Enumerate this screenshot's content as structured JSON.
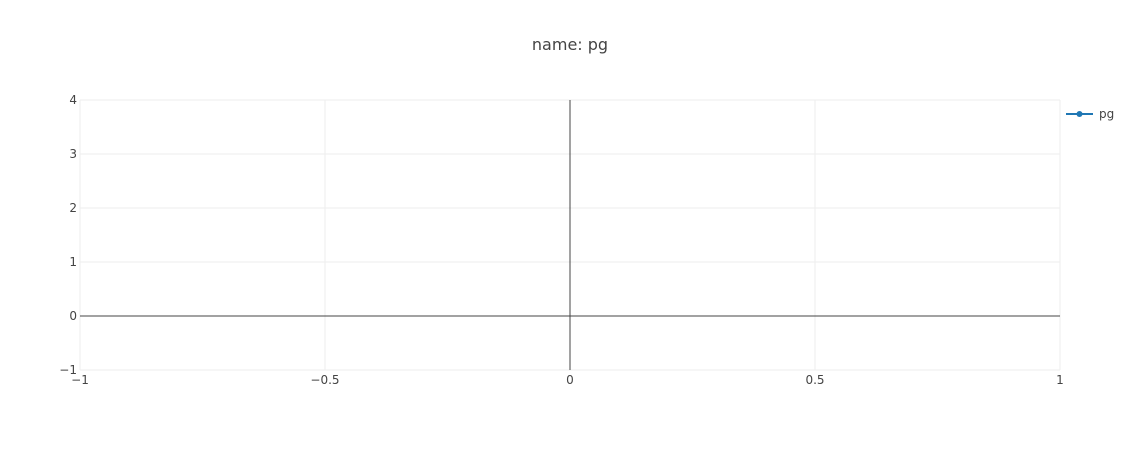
{
  "chart_data": {
    "type": "line",
    "title": "name: pg",
    "xlabel": "",
    "ylabel": "",
    "xlim": [
      -1,
      1
    ],
    "ylim": [
      -1,
      4
    ],
    "x_ticks": [
      -1,
      -0.5,
      0,
      0.5,
      1
    ],
    "x_tick_labels": [
      "−1",
      "−0.5",
      "0",
      "0.5",
      "1"
    ],
    "y_ticks": [
      -1,
      0,
      1,
      2,
      3,
      4
    ],
    "y_tick_labels": [
      "−1",
      "0",
      "1",
      "2",
      "3",
      "4"
    ],
    "grid": true,
    "legend_position": "top-right",
    "series": [
      {
        "name": "pg",
        "color": "#1f77b4",
        "mode": "lines+markers",
        "x": [],
        "y": []
      }
    ]
  }
}
